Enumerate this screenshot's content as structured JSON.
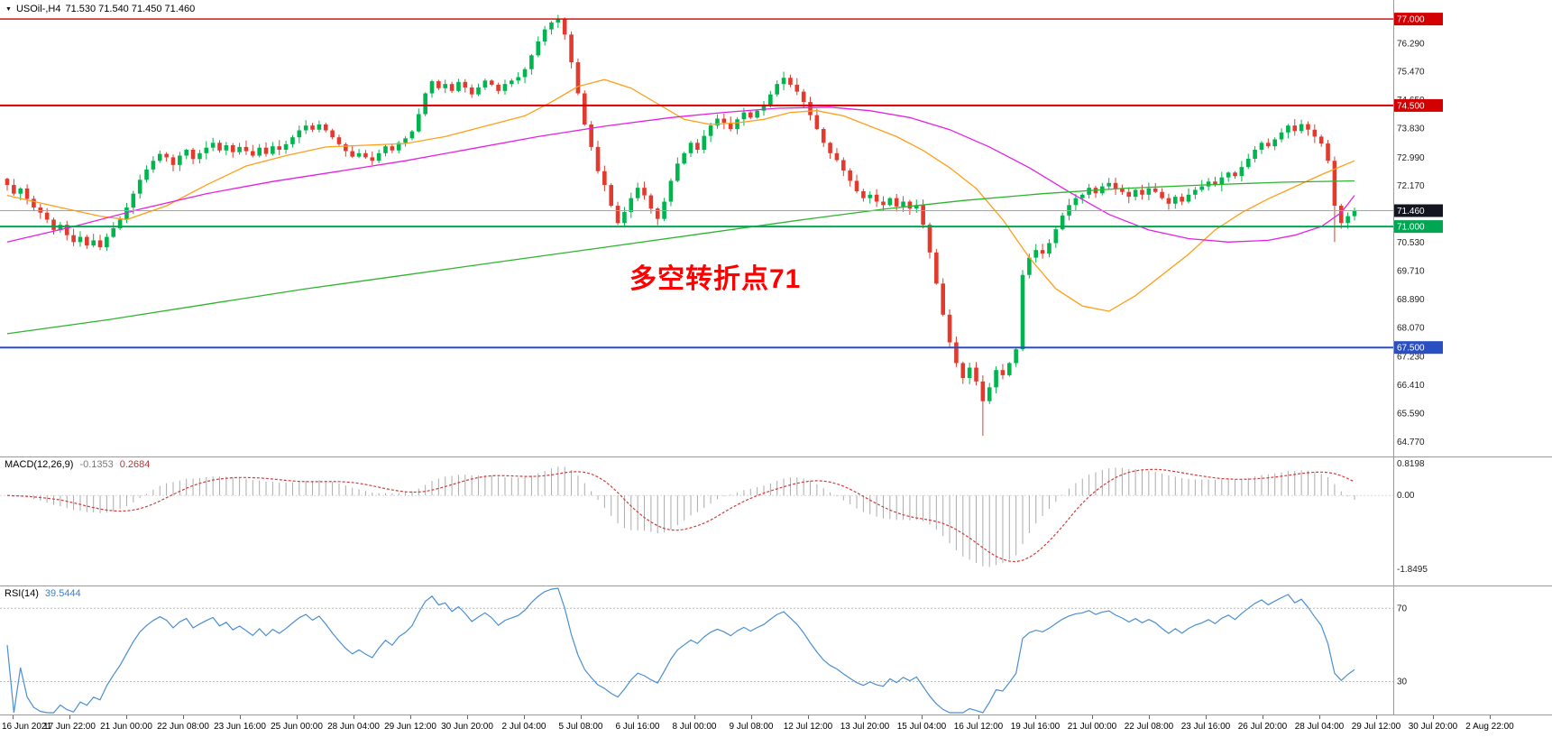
{
  "header": {
    "triangle": "▼",
    "symbol": "USOil-,H4",
    "ohlc": "71.530 71.540 71.450 71.460"
  },
  "annotation": {
    "text": "多空转折点71",
    "color": "#ff0000"
  },
  "macd_panel": {
    "params_label": "MACD(12,26,9)",
    "value_main": "-0.1353",
    "value_signal": "0.2684",
    "scale_zero_label": "0.00"
  },
  "rsi_panel": {
    "params_label": "RSI(14)",
    "value": "39.5444"
  },
  "chart_data": {
    "type": "candlestick",
    "symbol": "USOil-",
    "timeframe": "H4",
    "current_bar": {
      "open": 71.53,
      "high": 71.54,
      "low": 71.45,
      "close": 71.46
    },
    "price_axis": {
      "view_max": 77.55,
      "view_min": 64.35,
      "ticks": [
        76.29,
        75.47,
        74.65,
        73.83,
        72.99,
        72.17,
        70.53,
        69.71,
        68.89,
        68.07,
        67.23,
        66.41,
        65.59,
        64.77
      ]
    },
    "levels": [
      {
        "price": 77.0,
        "label": "77.000",
        "line_color": "#d20000",
        "badge_color": "#d20000",
        "width": 1.4
      },
      {
        "price": 74.5,
        "label": "74.500",
        "line_color": "#d20000",
        "badge_color": "#d20000",
        "width": 2
      },
      {
        "price": 71.46,
        "label": "71.460",
        "line_color": "#93a8c8",
        "badge_color": "#13161f",
        "width": 1
      },
      {
        "price": 71.0,
        "label": "71.000",
        "line_color": "#00a651",
        "badge_color": "#00a651",
        "width": 2
      },
      {
        "price": 67.5,
        "label": "67.500",
        "line_color": "#2a4fc2",
        "badge_color": "#2a4fc2",
        "width": 2
      }
    ],
    "colors": {
      "candle_up": "#00b44e",
      "candle_down": "#e23b2e",
      "macd_histogram": "#ababab",
      "macd_signal": "#d23b3b",
      "macd_zero": "#d9d9d9",
      "rsi_line": "#4a8fd3",
      "rsi_level": "#b8b8b8",
      "axis_text": "#222"
    },
    "closes": [
      72.2,
      71.95,
      72.1,
      71.8,
      71.55,
      71.4,
      71.2,
      70.9,
      71.05,
      70.75,
      70.55,
      70.7,
      70.45,
      70.6,
      70.4,
      70.7,
      70.95,
      71.2,
      71.55,
      71.95,
      72.35,
      72.65,
      72.9,
      73.1,
      73.0,
      72.78,
      73.05,
      73.22,
      72.95,
      73.12,
      73.28,
      73.42,
      73.2,
      73.35,
      73.15,
      73.3,
      73.18,
      73.05,
      73.28,
      73.1,
      73.32,
      73.22,
      73.38,
      73.58,
      73.78,
      73.92,
      73.8,
      73.95,
      73.78,
      73.58,
      73.38,
      73.18,
      73.02,
      73.12,
      73.0,
      72.9,
      73.12,
      73.32,
      73.2,
      73.42,
      73.55,
      73.75,
      74.25,
      74.85,
      75.2,
      75.0,
      75.12,
      74.92,
      75.18,
      75.02,
      74.82,
      75.02,
      75.22,
      75.1,
      74.92,
      75.12,
      75.22,
      75.32,
      75.55,
      75.95,
      76.35,
      76.7,
      76.9,
      77.0,
      76.55,
      75.75,
      74.85,
      73.95,
      73.3,
      72.6,
      72.2,
      71.6,
      71.1,
      71.42,
      71.82,
      72.12,
      71.9,
      71.52,
      71.22,
      71.72,
      72.32,
      72.82,
      73.12,
      73.42,
      73.22,
      73.62,
      73.92,
      74.12,
      74.0,
      73.82,
      74.1,
      74.3,
      74.15,
      74.35,
      74.52,
      74.82,
      75.12,
      75.3,
      75.1,
      74.9,
      74.6,
      74.22,
      73.82,
      73.42,
      73.12,
      72.92,
      72.62,
      72.32,
      72.02,
      71.82,
      71.92,
      71.72,
      71.62,
      71.82,
      71.58,
      71.72,
      71.52,
      71.62,
      71.05,
      70.25,
      69.35,
      68.45,
      67.65,
      67.05,
      66.62,
      66.92,
      66.52,
      65.95,
      66.35,
      66.85,
      66.7,
      67.05,
      67.45,
      69.6,
      70.1,
      70.32,
      70.22,
      70.52,
      70.92,
      71.32,
      71.62,
      71.82,
      71.92,
      72.12,
      71.96,
      72.16,
      72.26,
      72.1,
      72.0,
      71.86,
      72.06,
      71.92,
      72.1,
      72.0,
      71.82,
      71.66,
      71.86,
      71.72,
      71.92,
      72.06,
      72.16,
      72.3,
      72.2,
      72.42,
      72.56,
      72.46,
      72.72,
      72.96,
      73.22,
      73.42,
      73.32,
      73.52,
      73.72,
      73.92,
      73.76,
      73.96,
      73.8,
      73.6,
      73.4,
      72.9,
      71.6,
      71.1,
      71.3,
      71.46
    ],
    "wick_overrides": {
      "83": {
        "high": 77.12
      },
      "147": {
        "low": 64.95
      },
      "200": {
        "low": 70.55
      }
    },
    "moving_averages": [
      {
        "name": "ma-fast-orange",
        "color": "#ff9f1a",
        "points": [
          [
            0,
            71.9
          ],
          [
            8,
            71.55
          ],
          [
            14,
            71.3
          ],
          [
            18,
            71.2
          ],
          [
            24,
            71.6
          ],
          [
            30,
            72.2
          ],
          [
            36,
            72.75
          ],
          [
            42,
            73.05
          ],
          [
            48,
            73.3
          ],
          [
            54,
            73.35
          ],
          [
            60,
            73.4
          ],
          [
            66,
            73.6
          ],
          [
            72,
            73.9
          ],
          [
            78,
            74.2
          ],
          [
            82,
            74.6
          ],
          [
            86,
            75.05
          ],
          [
            90,
            75.25
          ],
          [
            94,
            75.0
          ],
          [
            98,
            74.55
          ],
          [
            102,
            74.1
          ],
          [
            106,
            73.95
          ],
          [
            110,
            74.0
          ],
          [
            114,
            74.1
          ],
          [
            118,
            74.3
          ],
          [
            122,
            74.35
          ],
          [
            126,
            74.2
          ],
          [
            130,
            73.9
          ],
          [
            134,
            73.6
          ],
          [
            138,
            73.2
          ],
          [
            142,
            72.7
          ],
          [
            146,
            72.1
          ],
          [
            150,
            71.2
          ],
          [
            154,
            70.1
          ],
          [
            158,
            69.2
          ],
          [
            162,
            68.7
          ],
          [
            166,
            68.55
          ],
          [
            170,
            69.0
          ],
          [
            174,
            69.6
          ],
          [
            178,
            70.2
          ],
          [
            182,
            70.9
          ],
          [
            186,
            71.4
          ],
          [
            190,
            71.8
          ],
          [
            194,
            72.15
          ],
          [
            198,
            72.5
          ],
          [
            203,
            72.9
          ]
        ]
      },
      {
        "name": "ma-mid-magenta",
        "color": "#e520e5",
        "points": [
          [
            0,
            70.55
          ],
          [
            10,
            71.0
          ],
          [
            20,
            71.5
          ],
          [
            30,
            71.95
          ],
          [
            40,
            72.3
          ],
          [
            50,
            72.6
          ],
          [
            60,
            72.9
          ],
          [
            70,
            73.25
          ],
          [
            80,
            73.6
          ],
          [
            90,
            73.9
          ],
          [
            100,
            74.15
          ],
          [
            108,
            74.3
          ],
          [
            116,
            74.42
          ],
          [
            124,
            74.45
          ],
          [
            130,
            74.35
          ],
          [
            136,
            74.15
          ],
          [
            142,
            73.8
          ],
          [
            148,
            73.3
          ],
          [
            154,
            72.7
          ],
          [
            160,
            72.0
          ],
          [
            166,
            71.35
          ],
          [
            172,
            70.9
          ],
          [
            178,
            70.65
          ],
          [
            184,
            70.55
          ],
          [
            190,
            70.6
          ],
          [
            194,
            70.75
          ],
          [
            198,
            71.0
          ],
          [
            201,
            71.4
          ],
          [
            203,
            71.9
          ]
        ]
      },
      {
        "name": "ma-slow-green",
        "color": "#2db52d",
        "points": [
          [
            0,
            67.9
          ],
          [
            15,
            68.3
          ],
          [
            30,
            68.75
          ],
          [
            45,
            69.2
          ],
          [
            60,
            69.6
          ],
          [
            75,
            70.0
          ],
          [
            90,
            70.4
          ],
          [
            105,
            70.8
          ],
          [
            120,
            71.2
          ],
          [
            132,
            71.5
          ],
          [
            144,
            71.75
          ],
          [
            156,
            71.95
          ],
          [
            168,
            72.1
          ],
          [
            180,
            72.2
          ],
          [
            192,
            72.28
          ],
          [
            203,
            72.32
          ]
        ]
      }
    ],
    "indicators": {
      "macd": {
        "params": "12,26,9",
        "value_main": -0.1353,
        "value_signal": 0.2684,
        "scale_max": 0.8198,
        "scale_min": -1.8495
      },
      "rsi": {
        "period": 14,
        "value": 39.5444,
        "levels": [
          70,
          30
        ]
      }
    },
    "x_labels": [
      "16 Jun 2021",
      "17 Jun 22:00",
      "21 Jun 00:00",
      "22 Jun 08:00",
      "23 Jun 16:00",
      "25 Jun 00:00",
      "28 Jun 04:00",
      "29 Jun 12:00",
      "30 Jun 20:00",
      "2 Jul 04:00",
      "5 Jul 08:00",
      "6 Jul 16:00",
      "8 Jul 00:00",
      "9 Jul 08:00",
      "12 Jul 12:00",
      "13 Jul 20:00",
      "15 Jul 04:00",
      "16 Jul 12:00",
      "19 Jul 16:00",
      "21 Jul 00:00",
      "22 Jul 08:00",
      "23 Jul 16:00",
      "26 Jul 20:00",
      "28 Jul 04:00",
      "29 Jul 12:00",
      "30 Jul 20:00",
      "2 Aug 22:00"
    ]
  }
}
